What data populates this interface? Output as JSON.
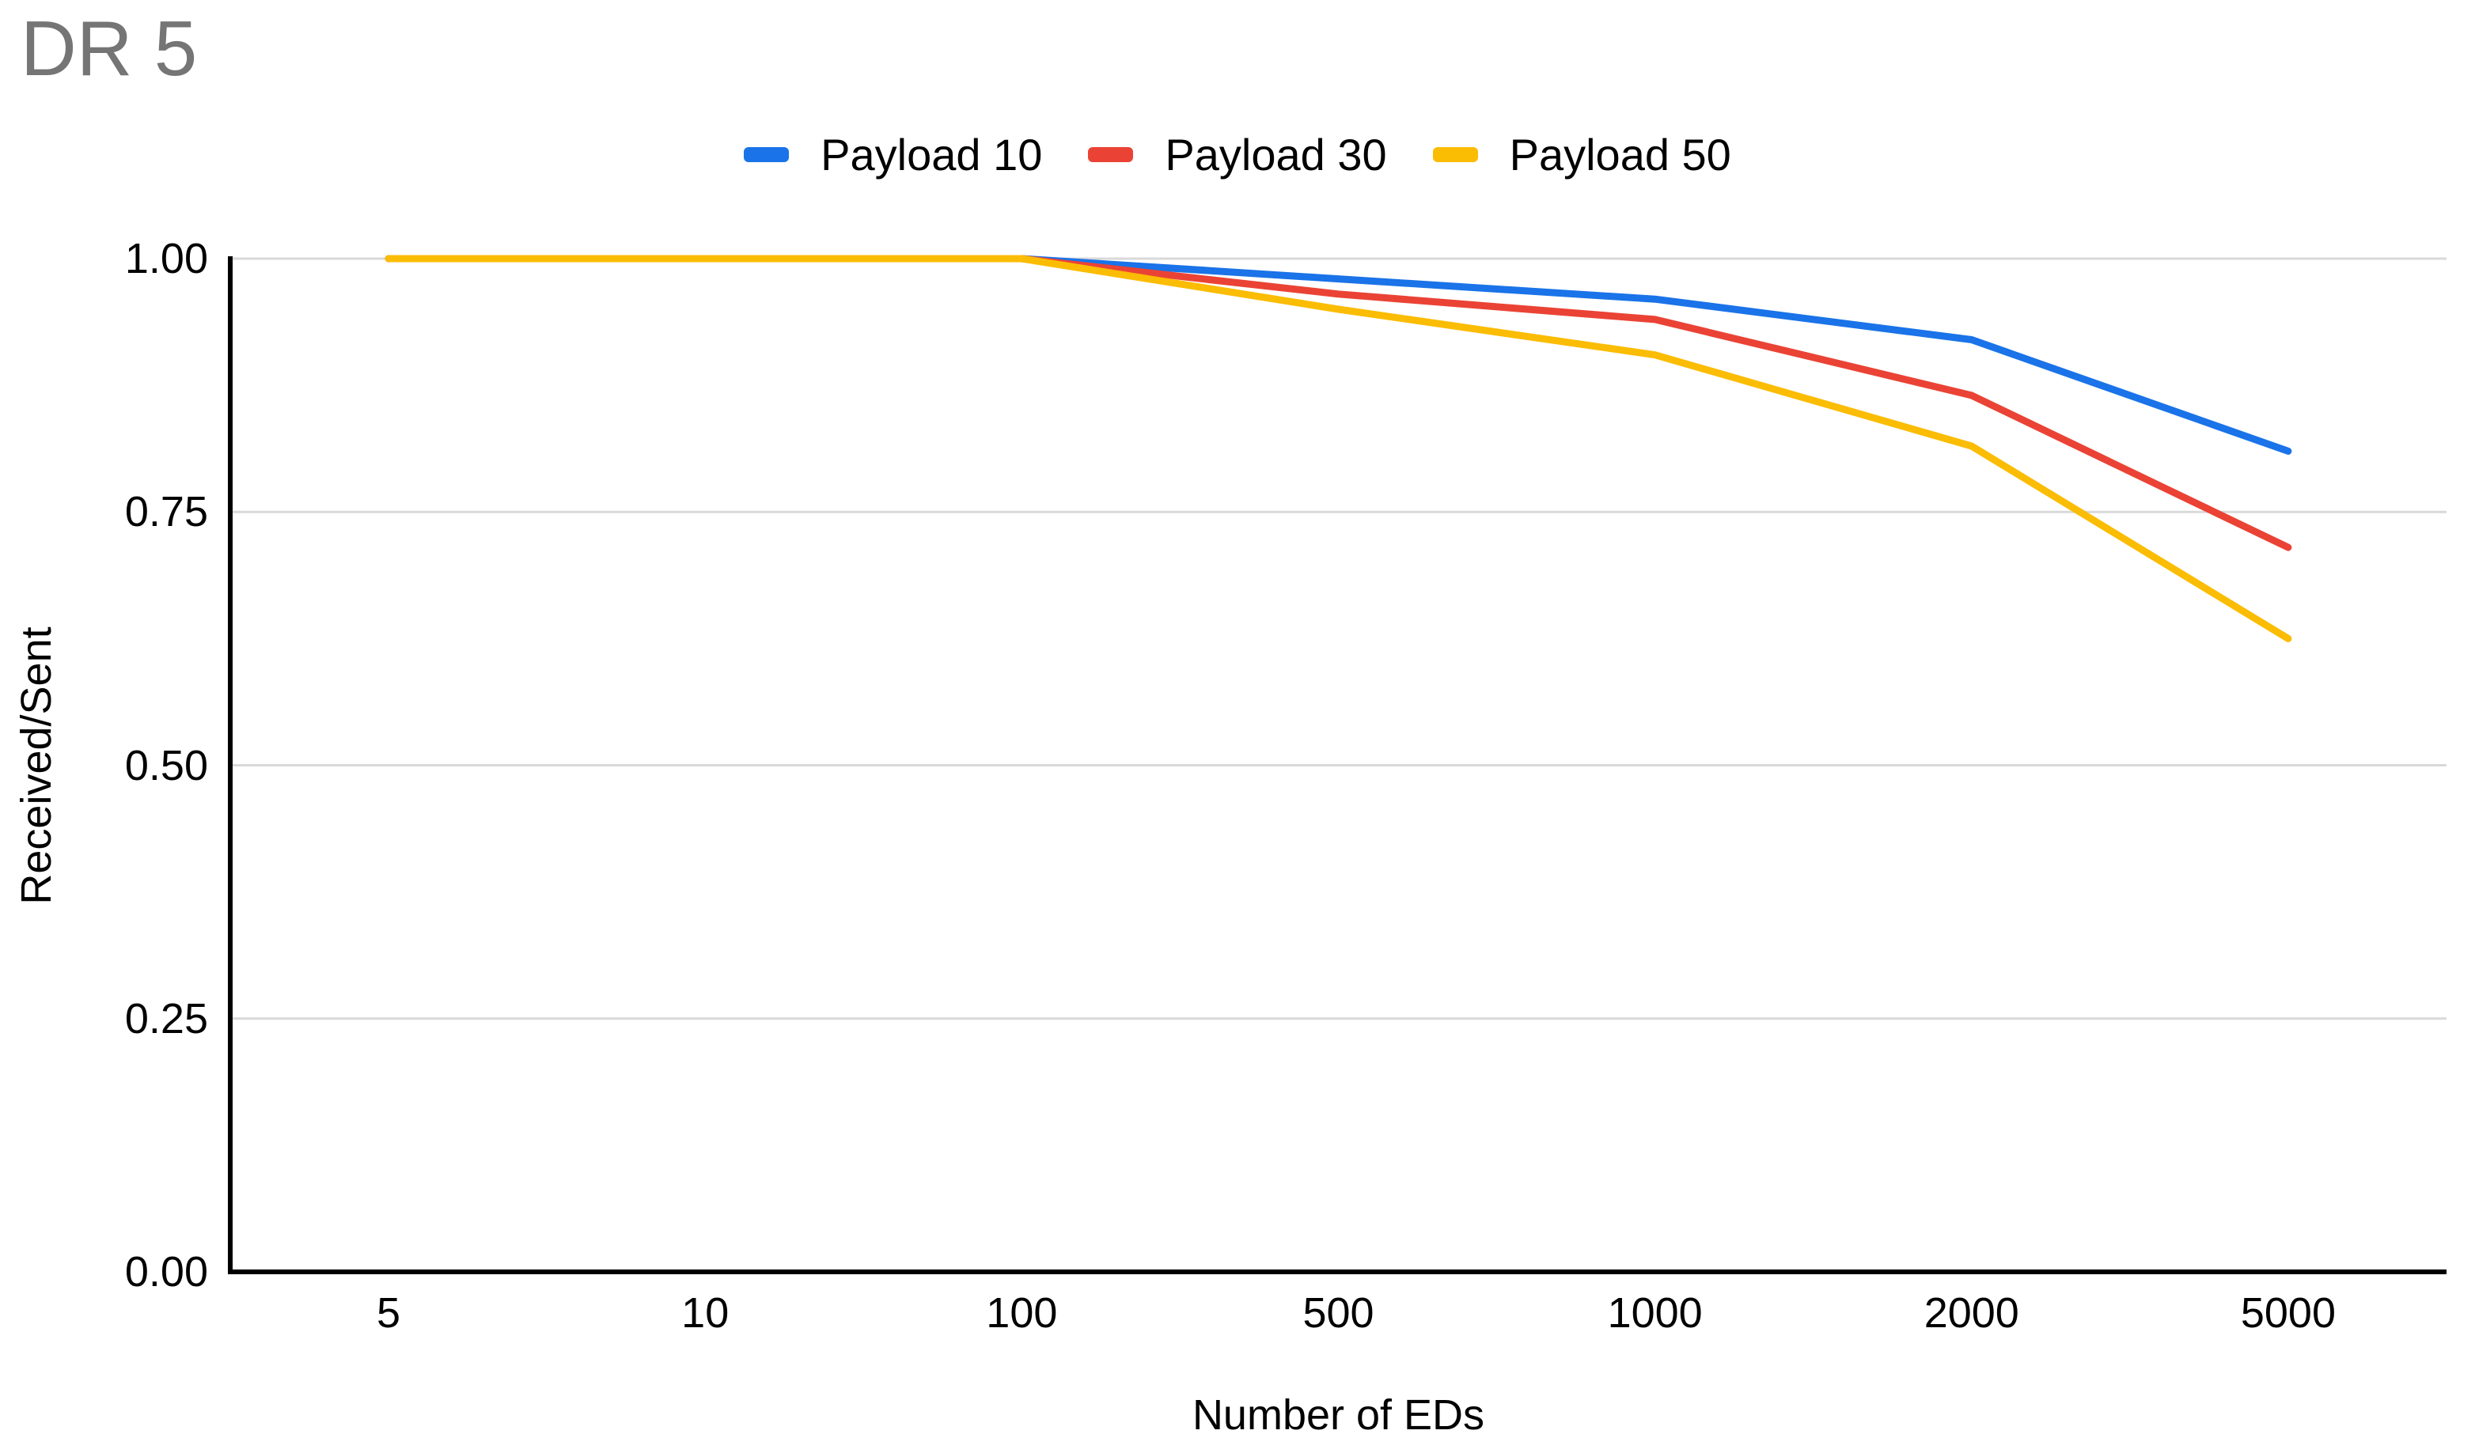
{
  "title": "DR 5",
  "colors": {
    "title_text": "#757575",
    "axis_text": "#000000",
    "gridline": "#d9d9d9",
    "axis_line": "#000000",
    "background": "#ffffff",
    "series_blue": "#1a73e8",
    "series_red": "#ea4335",
    "series_yellow": "#fbbc04"
  },
  "legend": {
    "items": [
      {
        "label": "Payload 10",
        "color": "#1a73e8"
      },
      {
        "label": "Payload 30",
        "color": "#ea4335"
      },
      {
        "label": "Payload 50",
        "color": "#fbbc04"
      }
    ]
  },
  "chart_data": {
    "type": "line",
    "title": "DR 5",
    "xlabel": "Number of EDs",
    "ylabel": "Received/Sent",
    "categories": [
      "5",
      "10",
      "100",
      "500",
      "1000",
      "2000",
      "5000"
    ],
    "series": [
      {
        "name": "Payload 10",
        "color": "#1a73e8",
        "values": [
          1.0,
          1.0,
          1.0,
          0.98,
          0.96,
          0.92,
          0.81
        ]
      },
      {
        "name": "Payload 30",
        "color": "#ea4335",
        "values": [
          1.0,
          1.0,
          1.0,
          0.965,
          0.94,
          0.865,
          0.715
        ]
      },
      {
        "name": "Payload 50",
        "color": "#fbbc04",
        "values": [
          1.0,
          1.0,
          1.0,
          0.95,
          0.905,
          0.815,
          0.625
        ]
      }
    ],
    "ylim": [
      0,
      1
    ],
    "yticks": [
      {
        "label": "0.00",
        "value": 0.0
      },
      {
        "label": "0.25",
        "value": 0.25
      },
      {
        "label": "0.50",
        "value": 0.5
      },
      {
        "label": "0.75",
        "value": 0.75
      },
      {
        "label": "1.00",
        "value": 1.0
      }
    ],
    "grid": true,
    "legend_position": "top"
  }
}
